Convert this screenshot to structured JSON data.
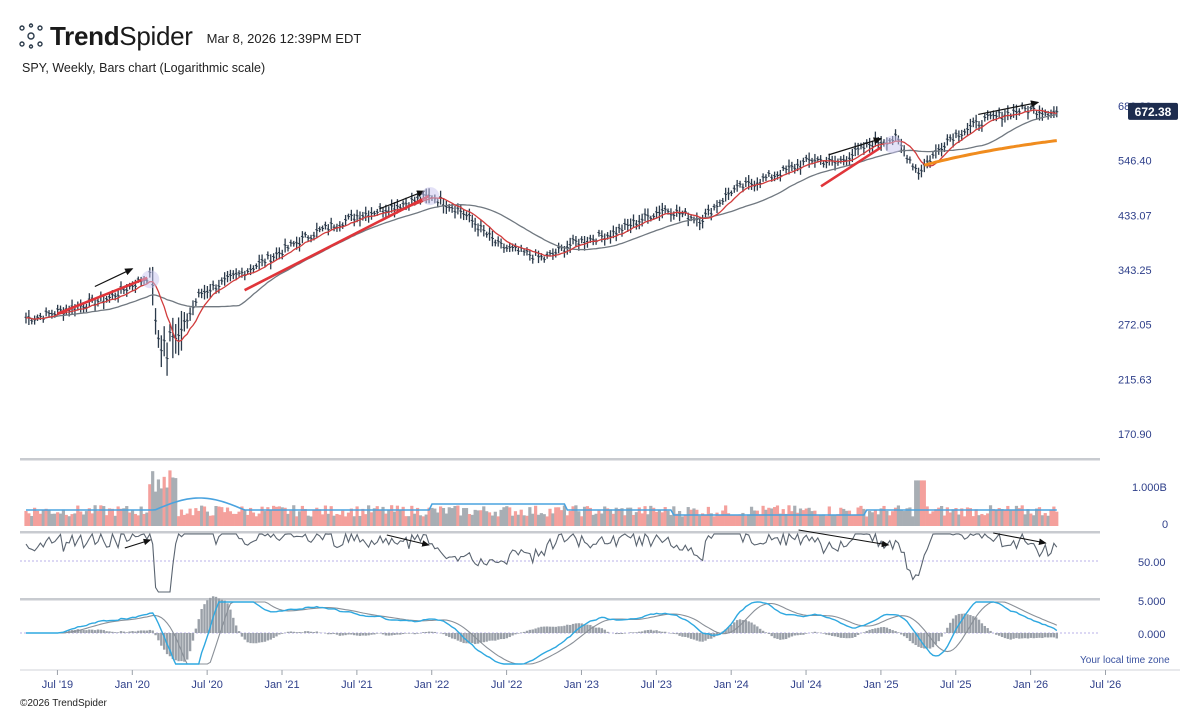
{
  "header": {
    "brand_bold": "Trend",
    "brand_light": "Spider",
    "timestamp": "Mar 8, 2026 12:39PM EDT",
    "subtitle": "SPY, Weekly, Bars chart (Logarithmic scale)",
    "local_tz": "Your local time zone",
    "copyright": "©2026 TrendSpider"
  },
  "colors": {
    "bar": "#2b3a4a",
    "ema_fast": "#d23c3c",
    "sma_slow": "#707880",
    "trend_red": "#e0353a",
    "orange": "#f08c1e",
    "volume_up": "#f4a09c",
    "volume_down": "#a8aeb4",
    "volume_ma": "#4aa3df",
    "rsi": "#5a6470",
    "macd": "#2fa8e0",
    "macd_signal": "#8a9098",
    "axis_text": "#3a52a0",
    "price_badge": "#1e2d4f"
  },
  "chart_data": {
    "type": "line",
    "scale": "log",
    "last_price": "672.38",
    "price_ticks": [
      "689.39",
      "546.40",
      "433.07",
      "343.25",
      "272.05",
      "215.63",
      "170.90"
    ],
    "volume_ticks": [
      "1.000B",
      "0"
    ],
    "rsi_ticks": [
      "50.00"
    ],
    "macd_ticks": [
      "5.000",
      "0.000"
    ],
    "x_ticks": [
      "Jul '19",
      "Jan '20",
      "Jul '20",
      "Jan '21",
      "Jul '21",
      "Jan '22",
      "Jul '22",
      "Jan '23",
      "Jul '23",
      "Jan '24",
      "Jul '24",
      "Jan '25",
      "Jul '25",
      "Jan '26",
      "Jul '26"
    ],
    "price_series": {
      "name": "SPY",
      "x": [
        2019.35,
        2019.6,
        2019.85,
        2020.0,
        2020.12,
        2020.22,
        2020.3,
        2020.45,
        2020.7,
        2020.95,
        2021.2,
        2021.5,
        2021.75,
        2022.0,
        2022.2,
        2022.45,
        2022.75,
        2022.95,
        2023.2,
        2023.55,
        2023.8,
        2024.0,
        2024.3,
        2024.55,
        2024.7,
        2024.95,
        2025.1,
        2025.25,
        2025.45,
        2025.7,
        2025.95,
        2026.15
      ],
      "y": [
        280,
        292,
        305,
        322,
        335,
        275,
        255,
        310,
        335,
        365,
        400,
        432,
        450,
        470,
        440,
        380,
        360,
        385,
        400,
        445,
        425,
        480,
        515,
        550,
        540,
        590,
        600,
        520,
        600,
        650,
        680,
        672
      ]
    }
  }
}
